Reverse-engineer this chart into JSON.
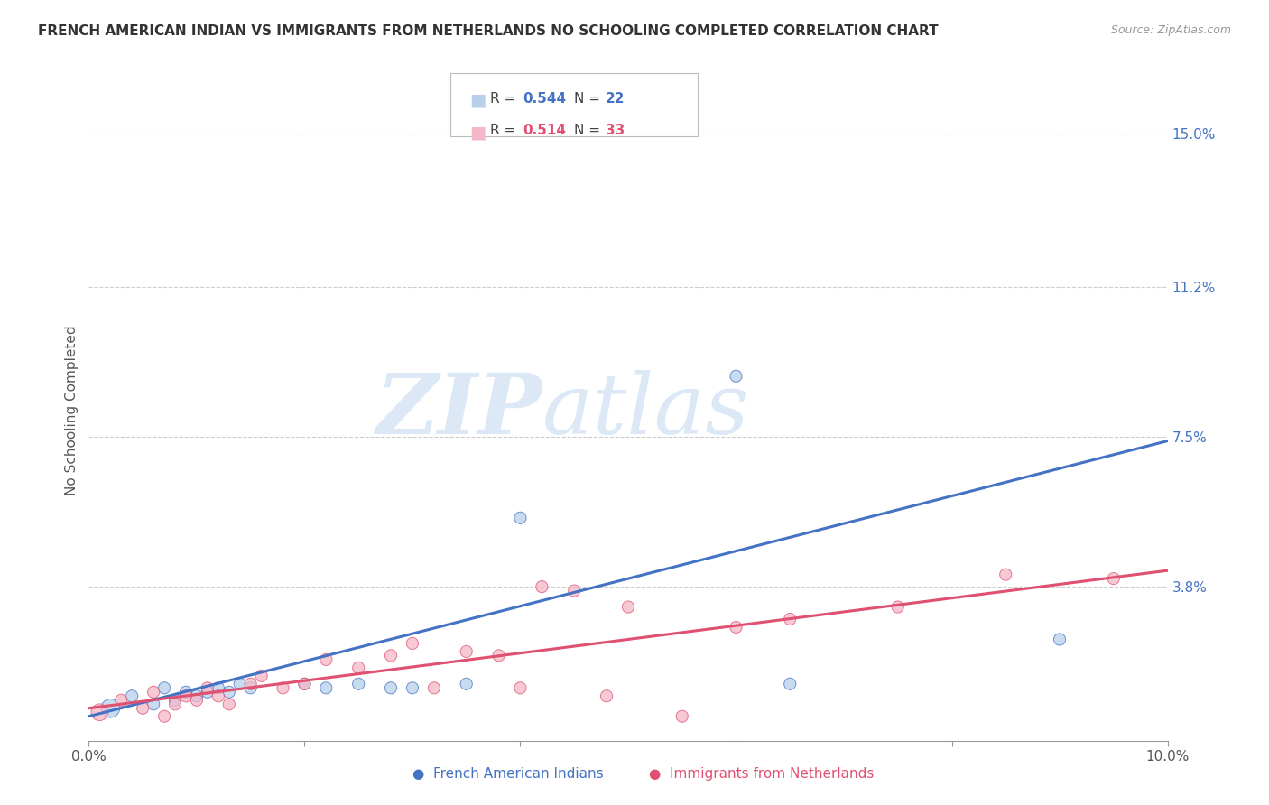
{
  "title": "FRENCH AMERICAN INDIAN VS IMMIGRANTS FROM NETHERLANDS NO SCHOOLING COMPLETED CORRELATION CHART",
  "source": "Source: ZipAtlas.com",
  "ylabel": "No Schooling Completed",
  "y_tick_values": [
    0.038,
    0.075,
    0.112,
    0.15
  ],
  "y_tick_labels": [
    "3.8%",
    "7.5%",
    "11.2%",
    "15.0%"
  ],
  "x_lim": [
    0.0,
    0.1
  ],
  "y_lim": [
    0.0,
    0.163
  ],
  "legend_label1": "French American Indians",
  "legend_label2": "Immigrants from Netherlands",
  "R1": "0.544",
  "N1": "22",
  "R2": "0.514",
  "N2": "33",
  "color_blue": "#b8d0ea",
  "color_pink": "#f5b8c8",
  "line_blue": "#4472c4",
  "line_pink": "#e05070",
  "watermark_zip": "ZIP",
  "watermark_atlas": "atlas",
  "blue_x": [
    0.002,
    0.004,
    0.006,
    0.007,
    0.008,
    0.009,
    0.01,
    0.011,
    0.012,
    0.013,
    0.014,
    0.015,
    0.02,
    0.022,
    0.025,
    0.028,
    0.03,
    0.035,
    0.04,
    0.06,
    0.065,
    0.09
  ],
  "blue_y": [
    0.008,
    0.011,
    0.009,
    0.013,
    0.01,
    0.012,
    0.011,
    0.012,
    0.013,
    0.012,
    0.014,
    0.013,
    0.014,
    0.013,
    0.014,
    0.013,
    0.013,
    0.014,
    0.055,
    0.09,
    0.014,
    0.025
  ],
  "blue_s": [
    220,
    90,
    90,
    90,
    90,
    90,
    90,
    90,
    90,
    90,
    90,
    90,
    90,
    90,
    90,
    90,
    90,
    90,
    90,
    90,
    90,
    90
  ],
  "pink_x": [
    0.001,
    0.003,
    0.005,
    0.006,
    0.007,
    0.008,
    0.009,
    0.01,
    0.011,
    0.012,
    0.013,
    0.015,
    0.016,
    0.018,
    0.02,
    0.022,
    0.025,
    0.028,
    0.03,
    0.032,
    0.035,
    0.038,
    0.04,
    0.042,
    0.045,
    0.048,
    0.05,
    0.055,
    0.06,
    0.065,
    0.075,
    0.085,
    0.095
  ],
  "pink_y": [
    0.007,
    0.01,
    0.008,
    0.012,
    0.006,
    0.009,
    0.011,
    0.01,
    0.013,
    0.011,
    0.009,
    0.014,
    0.016,
    0.013,
    0.014,
    0.02,
    0.018,
    0.021,
    0.024,
    0.013,
    0.022,
    0.021,
    0.013,
    0.038,
    0.037,
    0.011,
    0.033,
    0.006,
    0.028,
    0.03,
    0.033,
    0.041,
    0.04
  ],
  "pink_s": [
    180,
    90,
    90,
    90,
    90,
    90,
    90,
    90,
    90,
    90,
    90,
    90,
    90,
    90,
    90,
    90,
    90,
    90,
    90,
    90,
    90,
    90,
    90,
    90,
    90,
    90,
    90,
    90,
    90,
    90,
    90,
    90,
    90
  ],
  "blue_line_x0": 0.0,
  "blue_line_y0": 0.006,
  "blue_line_x1": 0.1,
  "blue_line_y1": 0.074,
  "pink_line_x0": 0.0,
  "pink_line_y0": 0.008,
  "pink_line_x1": 0.1,
  "pink_line_y1": 0.042
}
